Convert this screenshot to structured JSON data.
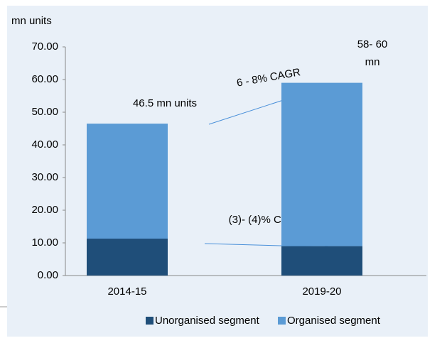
{
  "chart_data": {
    "type": "stacked_bar",
    "y_label": "mn units",
    "categories": [
      "2014-15",
      "2019-20"
    ],
    "series": [
      {
        "name": "Unorganised segment",
        "color": "#1f4e79",
        "values": [
          11.3,
          9.0
        ]
      },
      {
        "name": "Organised segment",
        "color": "#5b9bd5",
        "values": [
          35.2,
          50.0
        ]
      }
    ],
    "ylim": [
      0,
      70
    ],
    "yticks": [
      {
        "value": 0,
        "label": "0.00"
      },
      {
        "value": 10,
        "label": "10.00"
      },
      {
        "value": 20,
        "label": "20.00"
      },
      {
        "value": 30,
        "label": "30.00"
      },
      {
        "value": 40,
        "label": "40.00"
      },
      {
        "value": 50,
        "label": "50.00"
      },
      {
        "value": 60,
        "label": "60.00"
      },
      {
        "value": 70,
        "label": "70.00"
      }
    ],
    "grid": false,
    "legend": "bottom",
    "annotations": [
      "46.5 mn units",
      "58- 60",
      "mn",
      "6 - 8% CAGR",
      "(3)-  (4)% CAGR"
    ]
  }
}
